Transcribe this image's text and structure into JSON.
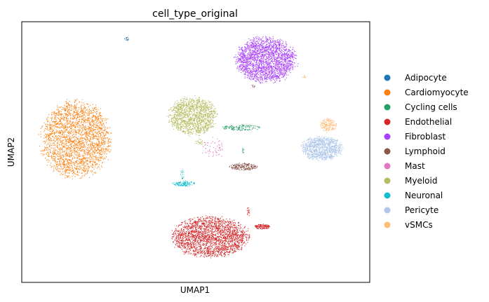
{
  "chart_data": {
    "type": "scatter",
    "title": "cell_type_original",
    "xlabel": "UMAP1",
    "ylabel": "UMAP2",
    "grid": false,
    "ticks": "hidden",
    "legend_placement": "right",
    "xlim": [
      0,
      100
    ],
    "ylim": [
      0,
      100
    ],
    "series": [
      {
        "name": "Adipocyte",
        "color": "#1f77b4",
        "clusters": [
          {
            "cx": 30,
            "cy": 93.5,
            "rx": 0.8,
            "ry": 0.8,
            "n": 14
          }
        ]
      },
      {
        "name": "Cardiomyocyte",
        "color": "#ff7f0e",
        "clusters": [
          {
            "cx": 15.5,
            "cy": 55,
            "rx": 11,
            "ry": 16,
            "n": 2400
          }
        ]
      },
      {
        "name": "Cycling cells",
        "color": "#279e68",
        "clusters": [
          {
            "cx": 63,
            "cy": 59.5,
            "rx": 6,
            "ry": 1.2,
            "n": 120
          },
          {
            "cx": 63.5,
            "cy": 50.5,
            "rx": 0.4,
            "ry": 1.2,
            "n": 8
          }
        ]
      },
      {
        "name": "Endothelial",
        "color": "#d62728",
        "clusters": [
          {
            "cx": 54,
            "cy": 17.5,
            "rx": 12,
            "ry": 8.5,
            "n": 2100
          },
          {
            "cx": 69,
            "cy": 21.5,
            "rx": 2.5,
            "ry": 1.0,
            "n": 120
          },
          {
            "cx": 65,
            "cy": 27,
            "rx": 0.6,
            "ry": 2.5,
            "n": 16
          }
        ]
      },
      {
        "name": "Fibroblast",
        "color": "#aa40fc",
        "clusters": [
          {
            "cx": 70,
            "cy": 85.5,
            "rx": 9.5,
            "ry": 9.5,
            "n": 2100
          }
        ]
      },
      {
        "name": "Lymphoid",
        "color": "#8c564b",
        "clusters": [
          {
            "cx": 63.5,
            "cy": 44.5,
            "rx": 4.5,
            "ry": 1.5,
            "n": 180
          },
          {
            "cx": 66.5,
            "cy": 75.5,
            "rx": 0.5,
            "ry": 0.8,
            "n": 8
          }
        ]
      },
      {
        "name": "Mast",
        "color": "#e377c2",
        "clusters": [
          {
            "cx": 55,
            "cy": 51.5,
            "rx": 3.5,
            "ry": 4.5,
            "n": 60
          }
        ]
      },
      {
        "name": "Myeloid",
        "color": "#b5bd61",
        "clusters": [
          {
            "cx": 49,
            "cy": 64,
            "rx": 7.5,
            "ry": 8.0,
            "n": 1300
          },
          {
            "cx": 51,
            "cy": 54,
            "rx": 1.5,
            "ry": 1.5,
            "n": 20
          }
        ]
      },
      {
        "name": "Neuronal",
        "color": "#17becf",
        "clusters": [
          {
            "cx": 46.5,
            "cy": 38,
            "rx": 3.5,
            "ry": 1.2,
            "n": 110
          },
          {
            "cx": 46,
            "cy": 41.5,
            "rx": 0.6,
            "ry": 2.0,
            "n": 14
          }
        ]
      },
      {
        "name": "Pericyte",
        "color": "#aec7e8",
        "clusters": [
          {
            "cx": 86,
            "cy": 51.5,
            "rx": 6.5,
            "ry": 5.0,
            "n": 1000
          }
        ]
      },
      {
        "name": "vSMCs",
        "color": "#ffbb78",
        "clusters": [
          {
            "cx": 88,
            "cy": 60.5,
            "rx": 2.5,
            "ry": 2.8,
            "n": 160
          },
          {
            "cx": 81,
            "cy": 79,
            "rx": 0.6,
            "ry": 1.0,
            "n": 8
          }
        ]
      }
    ]
  }
}
